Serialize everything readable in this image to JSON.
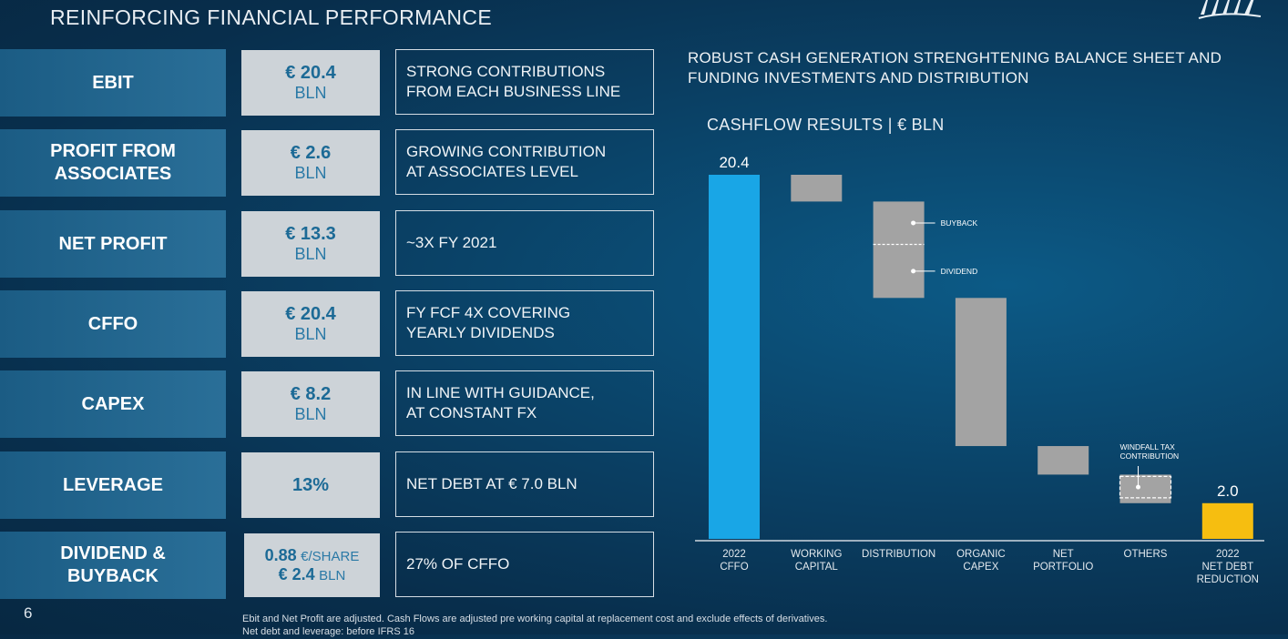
{
  "header": {
    "title": "REINFORCING FINANCIAL PERFORMANCE"
  },
  "kpis": [
    {
      "label": "EBIT",
      "value": "€ 20.4",
      "unit": "BLN",
      "desc": "STRONG CONTRIBUTIONS\nFROM EACH BUSINESS LINE"
    },
    {
      "label": "PROFIT FROM\nASSOCIATES",
      "value": "€ 2.6",
      "unit": "BLN",
      "desc": "GROWING CONTRIBUTION\nAT ASSOCIATES LEVEL"
    },
    {
      "label": "NET PROFIT",
      "value": "€ 13.3",
      "unit": "BLN",
      "desc": "~3X FY 2021"
    },
    {
      "label": "CFFO",
      "value": "€ 20.4",
      "unit": "BLN",
      "desc": "FY FCF 4X COVERING\nYEARLY DIVIDENDS"
    },
    {
      "label": "CAPEX",
      "value": "€ 8.2",
      "unit": "BLN",
      "desc": "IN LINE WITH GUIDANCE,\nAT CONSTANT FX"
    },
    {
      "label": "LEVERAGE",
      "value": "13%",
      "unit": "",
      "desc": "NET DEBT AT € 7.0 BLN"
    },
    {
      "label": "DIVIDEND &\nBUYBACK",
      "value": "0.88",
      "unit": "€/SHARE",
      "value2": "€ 2.4",
      "unit2": "BLN",
      "desc": "27% OF CFFO"
    }
  ],
  "right": {
    "title": "ROBUST CASH GENERATION STRENGHTENING BALANCE SHEET AND FUNDING INVESTMENTS AND DISTRIBUTION"
  },
  "colors": {
    "cffo_bar": "#19a6e6",
    "gray_bar": "#a3a3a3",
    "net_debt_bar": "#f6be10"
  },
  "chart_data": {
    "type": "bar",
    "subtype": "waterfall",
    "title": "CASHFLOW RESULTS | € BLN",
    "categories": [
      "2022\nCFFO",
      "WORKING\nCAPITAL",
      "DISTRIBUTION",
      "ORGANIC\nCAPEX",
      "NET\nPORTFOLIO",
      "OTHERS",
      "2022\nNET DEBT\nREDUCTION"
    ],
    "steps": [
      {
        "category": "2022 CFFO",
        "start": 0,
        "end": 20.4,
        "label": "20.4"
      },
      {
        "category": "WORKING CAPITAL",
        "start": 20.4,
        "end": 18.9
      },
      {
        "category": "DISTRIBUTION",
        "start": 18.9,
        "end": 13.5
      },
      {
        "category": "ORGANIC CAPEX",
        "start": 13.5,
        "end": 5.2
      },
      {
        "category": "NET PORTFOLIO",
        "start": 5.2,
        "end": 3.6
      },
      {
        "category": "OTHERS",
        "start": 3.6,
        "end": 2.0
      },
      {
        "category": "2022 NET DEBT REDUCTION",
        "start": 0,
        "end": 2.0,
        "label": "2.0"
      }
    ],
    "annotations": {
      "distribution_split": 16.5,
      "buyback": "BUYBACK",
      "dividend": "DIVIDEND",
      "windfall": "WINDFALL TAX\nCONTRIBUTION",
      "windfall_range": [
        2.3,
        3.5
      ]
    },
    "ylim": [
      0,
      20.4
    ]
  },
  "footer": {
    "page": "6",
    "note1": "Ebit and Net Profit are adjusted. Cash Flows are adjusted pre working capital at replacement cost and exclude effects of derivatives.",
    "note2": "Net debt and leverage: before IFRS 16"
  }
}
